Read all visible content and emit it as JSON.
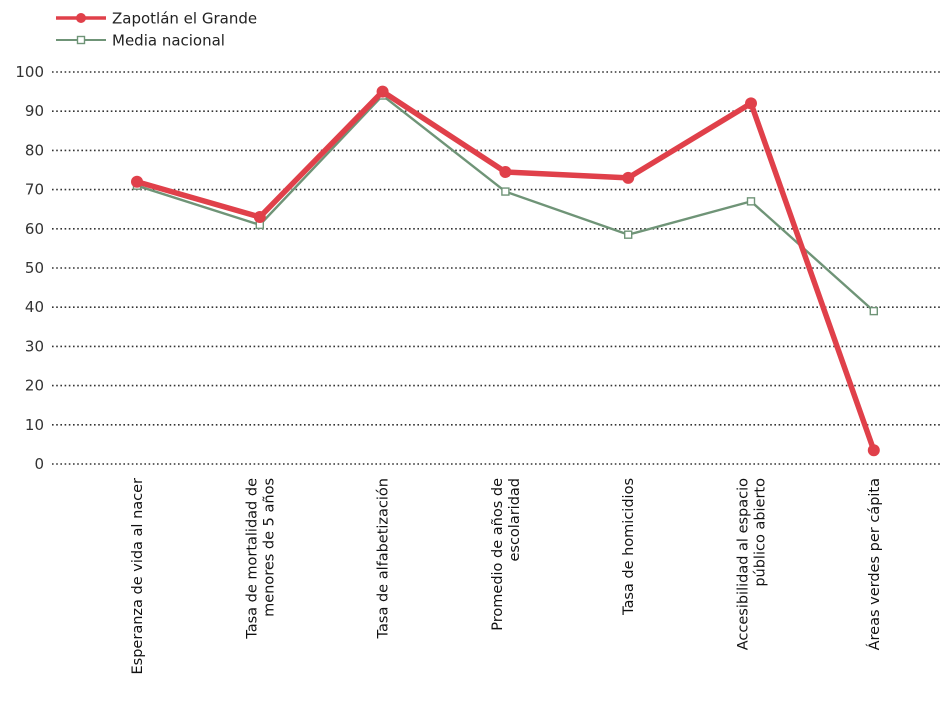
{
  "chart_data": {
    "type": "line",
    "categories": [
      [
        "Esperanza de vida al nacer"
      ],
      [
        "Tasa de mortalidad de",
        "menores de 5 años"
      ],
      [
        "Tasa de alfabetización"
      ],
      [
        "Promedio de años de",
        "escolaridad"
      ],
      [
        "Tasa de homicidios"
      ],
      [
        "Accesibilidad al espacio",
        "público abierto"
      ],
      [
        "Áreas verdes per cápita"
      ]
    ],
    "series": [
      {
        "name": "Zapotlán el Grande",
        "values": [
          72,
          63,
          95,
          74.5,
          73,
          92,
          3.5
        ],
        "color": "#e0404a",
        "marker": "filled-circle"
      },
      {
        "name": "Media nacional",
        "values": [
          71,
          61,
          94,
          69.5,
          58.5,
          67,
          39
        ],
        "color": "#6f9477",
        "marker": "hollow-square"
      }
    ],
    "ylim": [
      0,
      100
    ],
    "yticks": [
      0,
      10,
      20,
      30,
      40,
      50,
      60,
      70,
      80,
      90,
      100
    ],
    "grid": "horizontal-dotted",
    "legend_position": "top-left",
    "title": "",
    "xlabel": "",
    "ylabel": ""
  }
}
